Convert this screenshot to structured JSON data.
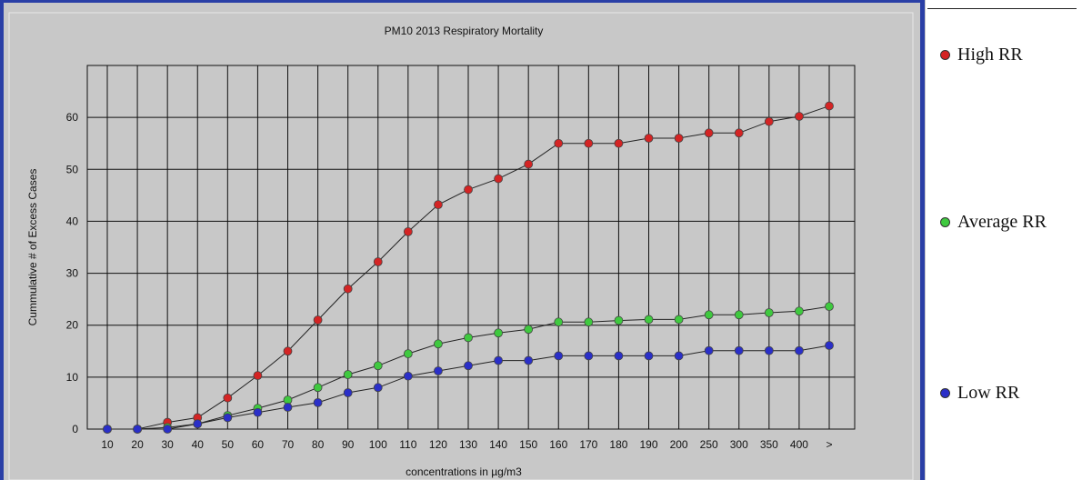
{
  "colors": {
    "panel_bg": "#c8c8c8",
    "frame_blue": "#2a3fa6",
    "grid": "#111111",
    "high": "#d42424",
    "average": "#3fc93f",
    "low": "#2a2fc8"
  },
  "legend": {
    "items": [
      {
        "label": "High RR",
        "color": "#d42424"
      },
      {
        "label": "Average RR",
        "color": "#3fc93f"
      },
      {
        "label": "Low RR",
        "color": "#2a2fc8"
      }
    ]
  },
  "chart_data": {
    "type": "line",
    "title": "PM10  2013  Respiratory Mortality",
    "xlabel": "concentrations in µg/m3",
    "ylabel": "Cummulative # of Excess Cases",
    "categories": [
      "10",
      "20",
      "30",
      "40",
      "50",
      "60",
      "70",
      "80",
      "90",
      "100",
      "110",
      "120",
      "130",
      "140",
      "150",
      "160",
      "170",
      "180",
      "190",
      "200",
      "250",
      "300",
      "350",
      "400",
      ">"
    ],
    "ylim": [
      0,
      70
    ],
    "yticks": [
      0,
      10,
      20,
      30,
      40,
      50,
      60
    ],
    "grid": true,
    "legend_position": "right",
    "series": [
      {
        "name": "High RR",
        "color": "#d42424",
        "values": [
          0,
          0,
          1.3,
          2.2,
          6,
          10.3,
          15,
          21,
          27,
          32.2,
          38,
          43.2,
          46.1,
          48.2,
          51,
          55,
          55,
          55,
          56,
          56,
          57,
          57,
          59.2,
          60.2,
          62.2
        ]
      },
      {
        "name": "Average RR",
        "color": "#3fc93f",
        "values": [
          0,
          0,
          0.3,
          1,
          2.6,
          4,
          5.6,
          8,
          10.5,
          12.2,
          14.5,
          16.4,
          17.6,
          18.5,
          19.2,
          20.6,
          20.6,
          20.9,
          21.1,
          21.1,
          22,
          22,
          22.4,
          22.7,
          23.6
        ]
      },
      {
        "name": "Low RR",
        "color": "#2a2fc8",
        "values": [
          0,
          0,
          0,
          1,
          2.2,
          3.2,
          4.2,
          5.1,
          7,
          8,
          10.2,
          11.2,
          12.2,
          13.2,
          13.2,
          14.1,
          14.1,
          14.1,
          14.1,
          14.1,
          15.1,
          15.1,
          15.1,
          15.1,
          16.1
        ]
      }
    ]
  }
}
